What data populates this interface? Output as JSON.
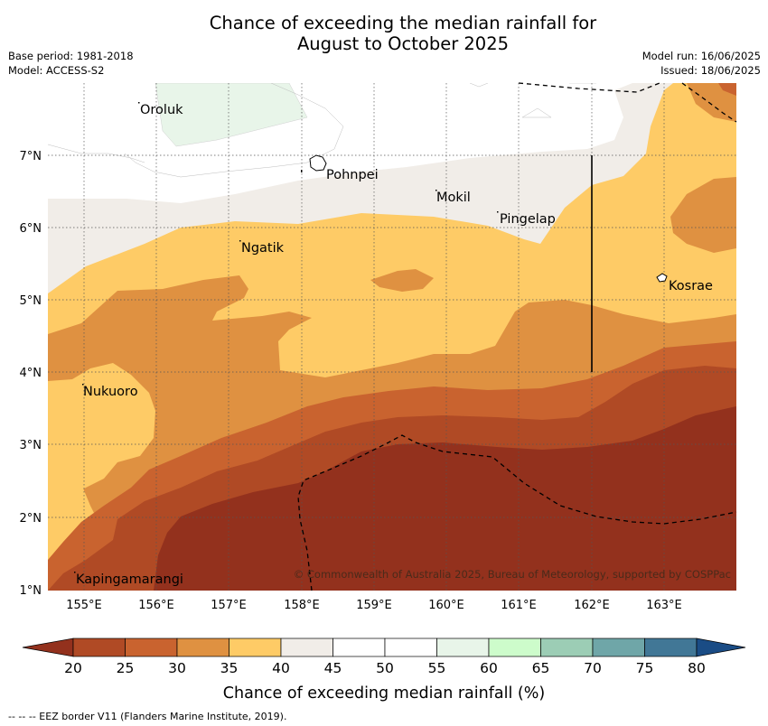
{
  "title": {
    "line1": "Chance of exceeding the median rainfall for",
    "line2": "August to October 2025"
  },
  "meta_left": {
    "base_period": "Base period: 1981-2018",
    "model": "Model: ACCESS-S2"
  },
  "meta_right": {
    "model_run": "Model run: 16/06/2025",
    "issued": "Issued: 18/06/2025"
  },
  "map": {
    "copyright": "© Commonwealth of Australia 2025, Bureau of Meteorology, supported by COSPPac",
    "lon_labels": [
      "155°E",
      "156°E",
      "157°E",
      "158°E",
      "159°E",
      "160°E",
      "161°E",
      "162°E",
      "163°E"
    ],
    "lat_labels": [
      "7°N",
      "6°N",
      "5°N",
      "4°N",
      "3°N",
      "2°N",
      "1°N"
    ],
    "places": [
      {
        "name": "Oroluk",
        "lon": 154.8,
        "lat": 7.57
      },
      {
        "name": "Pohnpei",
        "lon": 158.3,
        "lat": 6.98
      },
      {
        "name": "Mokil",
        "lon": 159.8,
        "lat": 6.62
      },
      {
        "name": "Pingelap",
        "lon": 160.7,
        "lat": 6.22
      },
      {
        "name": "Ngatik",
        "lon": 157.1,
        "lat": 5.8
      },
      {
        "name": "Kosrae",
        "lon": 163.0,
        "lat": 5.33
      },
      {
        "name": "Nukuoro",
        "lon": 154.95,
        "lat": 3.85
      },
      {
        "name": "Kapingamarangi",
        "lon": 154.8,
        "lat": 1.07
      }
    ],
    "lon_range": [
      154.5,
      164.0
    ],
    "lat_range": [
      1.0,
      8.0
    ],
    "eez_border_type": "dashed",
    "gridlines": "dotted"
  },
  "colorbar": {
    "ticks": [
      "20",
      "25",
      "30",
      "35",
      "40",
      "45",
      "50",
      "55",
      "60",
      "65",
      "70",
      "75",
      "80"
    ],
    "label": "Chance of exceeding median rainfall (%)",
    "colors": {
      "lt20": "#93311d",
      "20-25": "#b04a25",
      "25-30": "#c9632f",
      "30-35": "#df9141",
      "35-40": "#fecb66",
      "40-45": "#f1ede8",
      "45-55": "#ffffff",
      "55-60": "#e8f5e9",
      "60-65": "#cdfccb",
      "65-70": "#9ccdb5",
      "70-75": "#6fa6a8",
      "75-80": "#417796",
      "gt80": "#1a4c85"
    }
  },
  "footnote": "-- -- -- EEZ border V11 (Flanders Marine Institute, 2019)."
}
